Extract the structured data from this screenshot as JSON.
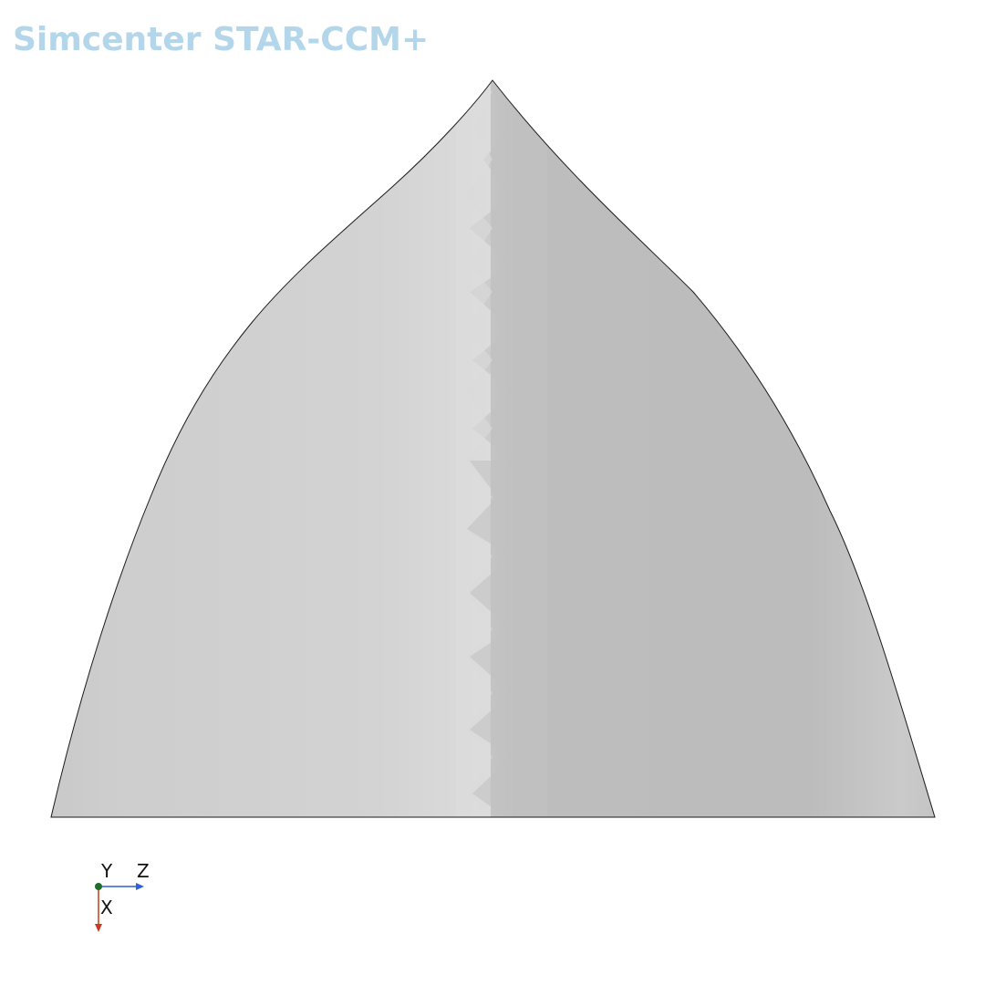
{
  "app": {
    "title": "Simcenter STAR-CCM+"
  },
  "scene": {
    "description_colors": {
      "background": "#ffffff",
      "surface_light": "#d8d8d8",
      "surface_mid": "#cdcdcd",
      "surface_dark": "#bebebe",
      "outline": "#1a1a1a"
    }
  },
  "triad": {
    "y_label": "Y",
    "z_label": "Z",
    "x_label": "X",
    "colors": {
      "origin": "#1f6e2a",
      "z_axis": "#2f5fd6",
      "x_axis": "#c83a1e"
    }
  }
}
